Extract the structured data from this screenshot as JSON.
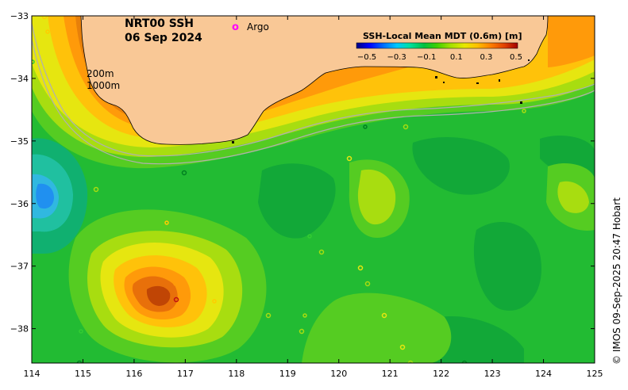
{
  "map": {
    "title_line1": "NRT00 SSH",
    "title_line2": "06 Sep 2024",
    "argo_marker": "o",
    "argo_label": "Argo",
    "contour_label_200": "200m",
    "contour_label_1000": "1000m",
    "colorbar_title": "SSH-Local Mean MDT (0.6m) [m]",
    "colorbar_ticks": [
      "−0.5",
      "−0.3",
      "−0.1",
      "0.1",
      "0.3",
      "0.5"
    ],
    "credit": "© IMOS 09-Sep-2025 20:47 Hobart",
    "x_ticks": [
      "114",
      "115",
      "116",
      "117",
      "118",
      "119",
      "120",
      "121",
      "122",
      "123",
      "124",
      "125"
    ],
    "y_ticks": [
      "−33",
      "−34",
      "−35",
      "−36",
      "−37",
      "−38"
    ],
    "x_range": [
      114,
      125
    ],
    "y_range": [
      -38.55,
      -33
    ],
    "colors": {
      "land": "#f9c896",
      "ocean_base": "#22bb33",
      "argo": "#ff00ff",
      "bathymetry": "#b0b0b0"
    },
    "colorbar_colors": [
      "#000080",
      "#0000ff",
      "#0070ff",
      "#00c8ff",
      "#00e0a0",
      "#00c040",
      "#40d000",
      "#a0e000",
      "#e8e800",
      "#ffc000",
      "#ff8000",
      "#e04000",
      "#a00000"
    ]
  }
}
